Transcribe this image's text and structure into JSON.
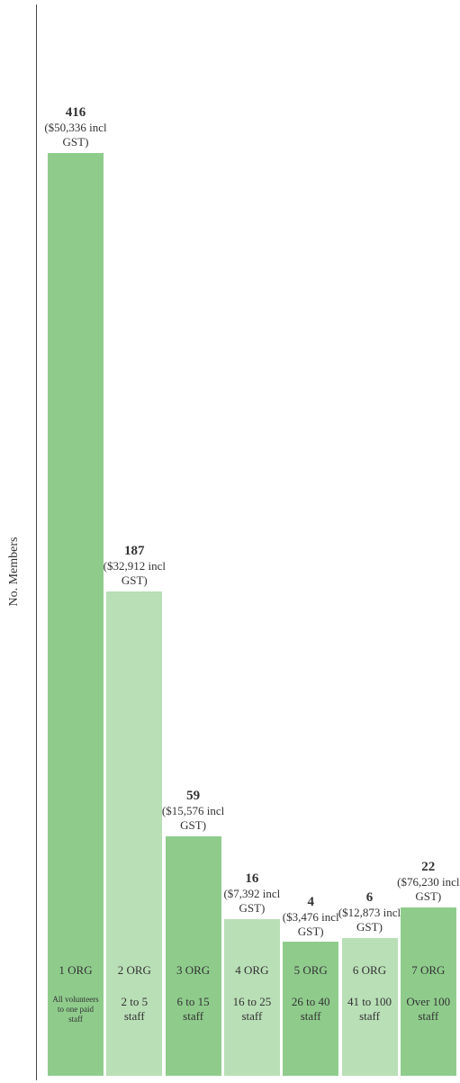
{
  "chart_data": {
    "type": "bar",
    "y_axis_label": "No. Members",
    "categories": [
      "1 ORG",
      "2 ORG",
      "3 ORG",
      "4 ORG",
      "5 ORG",
      "6 ORG",
      "7 ORG"
    ],
    "descriptions": [
      "All volunteers to one paid staff",
      "2 to 5 staff",
      "6 to 15 staff",
      "16 to 25 staff",
      "26 to 40 staff",
      "41 to 100 staff",
      "Over 100 staff"
    ],
    "values": [
      416,
      187,
      59,
      16,
      4,
      6,
      22
    ],
    "costs": [
      "($50,336 incl GST)",
      "($32,912 incl GST)",
      "($15,576 incl GST)",
      "($7,392 incl GST)",
      "($3,476 incl GST)",
      "($12,873 incl GST)",
      "($76,230 incl GST)"
    ],
    "colors": [
      "#8fcc8c",
      "#b9dfb6",
      "#8fcc8c",
      "#b9dfb6",
      "#8fcc8c",
      "#b9dfb6",
      "#8fcc8c"
    ]
  }
}
